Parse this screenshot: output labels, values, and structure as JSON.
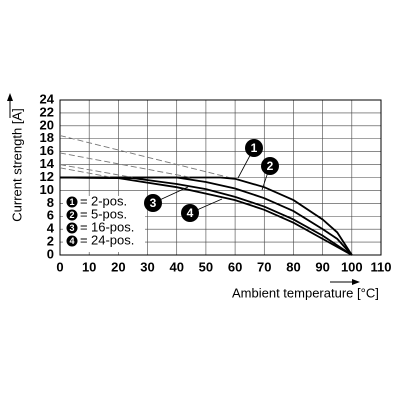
{
  "chart_data": {
    "type": "line",
    "xlabel": "Ambient temperature [°C]",
    "ylabel": "Current strength [A]",
    "xlim": [
      0,
      110
    ],
    "ylim": [
      0,
      24
    ],
    "xticks": [
      0,
      10,
      20,
      30,
      40,
      50,
      60,
      70,
      80,
      90,
      100,
      110
    ],
    "yticks": [
      0,
      2,
      4,
      6,
      8,
      10,
      12,
      14,
      16,
      18,
      20,
      22,
      24
    ],
    "grid": true,
    "legend": "lower left",
    "color": "#000000",
    "series": [
      {
        "name": "2-pos.",
        "marker": "1",
        "x": [
          0,
          55,
          60,
          70,
          80,
          90,
          95,
          100
        ],
        "values": [
          12,
          12,
          11.8,
          10.5,
          8.5,
          5.5,
          3.5,
          0
        ],
        "extension": {
          "x": [
            0,
            58
          ],
          "values": [
            18.5,
            12
          ]
        }
      },
      {
        "name": "5-pos.",
        "marker": "2",
        "x": [
          0,
          40,
          50,
          60,
          70,
          80,
          90,
          95,
          100
        ],
        "values": [
          12,
          12,
          11.3,
          10.3,
          8.8,
          6.8,
          4,
          2.5,
          0
        ],
        "extension": {
          "x": [
            0,
            45
          ],
          "values": [
            15.8,
            12
          ]
        }
      },
      {
        "name": "16-pos.",
        "marker": "3",
        "x": [
          0,
          25,
          40,
          50,
          60,
          70,
          80,
          90,
          100
        ],
        "values": [
          12,
          11.9,
          11,
          10.2,
          9,
          7.5,
          5.5,
          3,
          0
        ],
        "extension": {
          "x": [
            0,
            25
          ],
          "values": [
            14,
            12
          ]
        }
      },
      {
        "name": "24-pos.",
        "marker": "4",
        "x": [
          0,
          20,
          40,
          50,
          60,
          70,
          80,
          90,
          100
        ],
        "values": [
          12,
          11.9,
          10.5,
          9.5,
          8.5,
          7,
          5,
          2.5,
          0
        ],
        "extension": {
          "x": [
            0,
            18
          ],
          "values": [
            13.5,
            12
          ]
        }
      }
    ]
  }
}
